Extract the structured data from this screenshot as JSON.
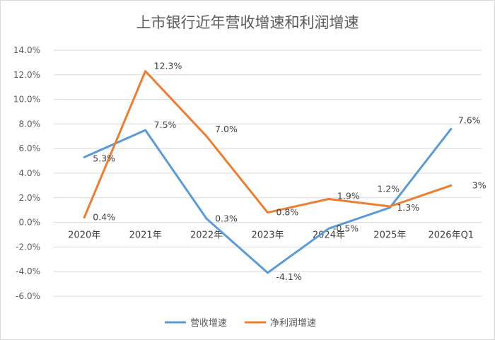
{
  "chart_data": {
    "type": "line",
    "title": "上市银行近年营收增速和利润增速",
    "categories": [
      "2020年",
      "2021年",
      "2022年",
      "2023年",
      "2024年",
      "2025年",
      "2026年Q1"
    ],
    "ylim": [
      -6.0,
      14.0
    ],
    "yticks": [
      "14.0%",
      "12.0%",
      "10.0%",
      "8.0%",
      "6.0%",
      "4.0%",
      "2.0%",
      "0.0%",
      "-2.0%",
      "-4.0%",
      "-6.0%"
    ],
    "grid": true,
    "legend_position": "bottom",
    "series": [
      {
        "name": "营收增速",
        "color": "#5b9bd5",
        "values": [
          5.3,
          7.5,
          0.3,
          -4.1,
          -0.5,
          1.2,
          7.6
        ],
        "labels": [
          "5.3%",
          "7.5%",
          "0.3%",
          "-4.1%",
          "-0.5%",
          "1.2%",
          "7.6%"
        ]
      },
      {
        "name": "净利润增速",
        "color": "#ed7d31",
        "values": [
          0.4,
          12.3,
          7.0,
          0.8,
          1.9,
          1.3,
          3.0
        ],
        "labels": [
          "0.4%",
          "12.3%",
          "7.0%",
          "0.8%",
          "1.9%",
          "1.3%",
          "3%"
        ]
      }
    ]
  }
}
